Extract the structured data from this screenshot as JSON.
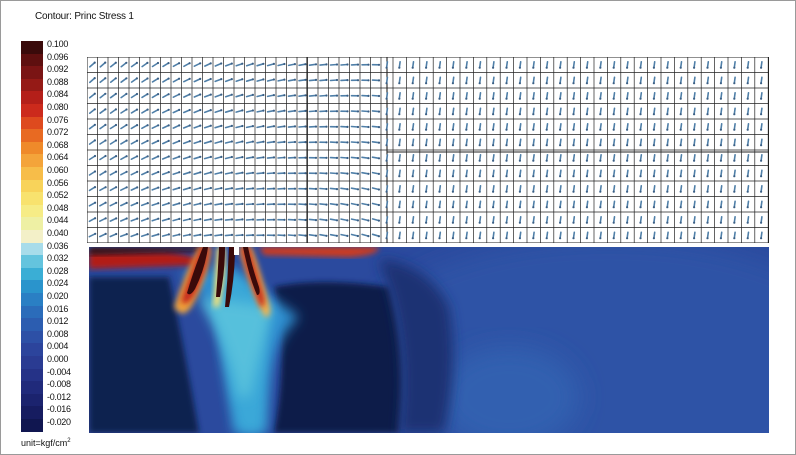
{
  "title": "Contour: Princ Stress 1",
  "legend": {
    "labels": [
      "0.100",
      "0.096",
      "0.092",
      "0.088",
      "0.084",
      "0.080",
      "0.076",
      "0.072",
      "0.068",
      "0.064",
      "0.060",
      "0.056",
      "0.052",
      "0.048",
      "0.044",
      "0.040",
      "0.036",
      "0.032",
      "0.028",
      "0.024",
      "0.020",
      "0.016",
      "0.012",
      "0.008",
      "0.004",
      "0.000",
      "-0.004",
      "-0.008",
      "-0.012",
      "-0.016",
      "-0.020"
    ],
    "colors": [
      "#3a0a0a",
      "#5e0f0f",
      "#7a1414",
      "#951a16",
      "#b41f19",
      "#cc2a1c",
      "#de4a1e",
      "#e86a22",
      "#ef8a2a",
      "#f4a43a",
      "#f7bd49",
      "#f8d35a",
      "#f8e26e",
      "#f6ec86",
      "#eef0a4",
      "#f3f0c8",
      "#a8dcea",
      "#64c4de",
      "#3aaed5",
      "#2a94cc",
      "#2a7fc4",
      "#2b6cba",
      "#2c5db0",
      "#2d50a6",
      "#2c449c",
      "#2a3b92",
      "#253287",
      "#202a7b",
      "#1b236e",
      "#161c60",
      "#101650"
    ],
    "unit": "unit=kgf/cm",
    "unit_sup": "2"
  }
}
